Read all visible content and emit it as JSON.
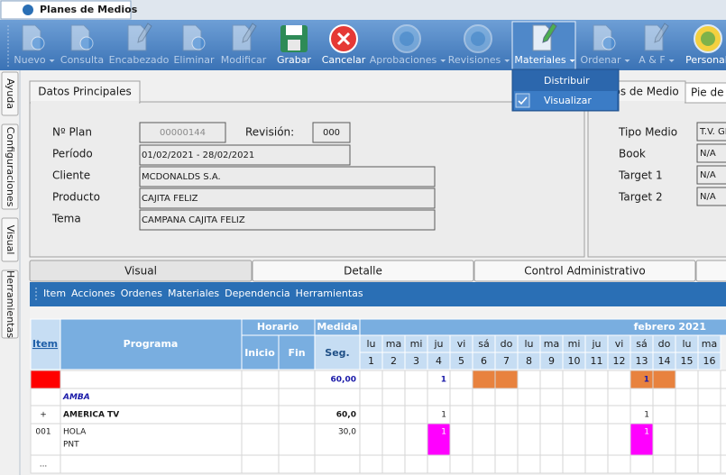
{
  "tab": "Planes de Medios",
  "toolbar": {
    "buttons": [
      {
        "label": "Nuevo",
        "enabled": false,
        "dropdown": true
      },
      {
        "label": "Consulta",
        "enabled": false,
        "dropdown": false
      },
      {
        "label": "Encabezado",
        "enabled": false,
        "dropdown": false
      },
      {
        "label": "Eliminar",
        "enabled": false,
        "dropdown": false
      },
      {
        "label": "Modificar",
        "enabled": false,
        "dropdown": false
      },
      {
        "label": "Grabar",
        "enabled": true,
        "dropdown": false
      },
      {
        "label": "Cancelar",
        "enabled": true,
        "dropdown": false
      },
      {
        "label": "Aprobaciones",
        "enabled": false,
        "dropdown": true
      },
      {
        "label": "Revisiones",
        "enabled": false,
        "dropdown": true
      },
      {
        "label": "Materiales",
        "enabled": true,
        "dropdown": true,
        "active": true
      },
      {
        "label": "Ordenar",
        "enabled": false,
        "dropdown": true
      },
      {
        "label": "A & F",
        "enabled": false,
        "dropdown": true
      },
      {
        "label": "Personali",
        "enabled": true,
        "dropdown": false
      }
    ]
  },
  "dropdown": {
    "items": [
      {
        "label": "Distribuir",
        "checked": false
      },
      {
        "label": "Visualizar",
        "checked": true
      }
    ]
  },
  "side_tabs": [
    "Ayuda",
    "Configuraciones",
    "Visual",
    "Herramientas"
  ],
  "main_tab": "Datos Principales",
  "plan": {
    "label": "Nº Plan",
    "value": "00000144"
  },
  "revision": {
    "label": "Revisión:",
    "value": "000"
  },
  "main_fields": [
    {
      "label": "Período",
      "value": "01/02/2021 - 28/02/2021"
    },
    {
      "label": "Cliente",
      "value": "MCDONALDS S.A."
    },
    {
      "label": "Producto",
      "value": "CAJITA FELIZ"
    },
    {
      "label": "Tema",
      "value": "CAMPANA CAJITA FELIZ"
    }
  ],
  "media_tabs": [
    "Datos de Medio",
    "Pie de"
  ],
  "media_fields": [
    {
      "label": "Tipo Medio",
      "value": "T.V. GI"
    },
    {
      "label": "Book",
      "value": "N/A"
    },
    {
      "label": "Target 1",
      "value": "N/A"
    },
    {
      "label": "Target 2",
      "value": "N/A"
    }
  ],
  "bottom_tabs": [
    "Visual",
    "Detalle",
    "Control Administrativo"
  ],
  "menu": [
    "Item",
    "Acciones",
    "Ordenes",
    "Materiales",
    "Dependencia",
    "Herramientas"
  ],
  "grid": {
    "headers": {
      "item": "Item",
      "programa": "Programa",
      "horario": "Horario",
      "inicio": "Inicio",
      "fin": "Fin",
      "medida": "Medida",
      "seg": "Seg.",
      "month": "febrero 2021"
    },
    "weekdays": [
      "lu",
      "ma",
      "mi",
      "ju",
      "vi",
      "sá",
      "do",
      "lu",
      "ma",
      "mi",
      "ju",
      "vi",
      "sá",
      "do",
      "lu",
      "ma"
    ],
    "days": [
      1,
      2,
      3,
      4,
      5,
      6,
      7,
      8,
      9,
      10,
      11,
      12,
      13,
      14,
      15,
      16
    ],
    "rows": [
      {
        "style": "total",
        "item_fill": "#ff0000",
        "seg": "60,00",
        "cells": [
          null,
          null,
          null,
          {
            "text": "1"
          },
          null,
          {
            "fill": "#e8823e"
          },
          {
            "fill": "#e8823e"
          },
          null,
          null,
          null,
          null,
          null,
          {
            "text": "1",
            "fill": "#e8823e"
          },
          {
            "fill": "#e8823e"
          },
          null,
          null
        ]
      },
      {
        "style": "group",
        "programa": "AMBA"
      },
      {
        "style": "subtotal",
        "item": "+",
        "programa": "AMERICA TV",
        "seg": "60,0",
        "cells": [
          null,
          null,
          null,
          {
            "text": "1"
          },
          null,
          null,
          null,
          null,
          null,
          null,
          null,
          null,
          {
            "text": "1"
          },
          null,
          null,
          null
        ]
      },
      {
        "style": "detail",
        "item": "001",
        "programa": "HOLA",
        "programa2": "PNT",
        "seg": "30,0",
        "cells": [
          null,
          null,
          null,
          {
            "text": "1",
            "fill": "#ff00ff"
          },
          null,
          null,
          null,
          null,
          null,
          null,
          null,
          null,
          {
            "text": "1",
            "fill": "#ff00ff"
          },
          null,
          null,
          null
        ]
      },
      {
        "style": "detail",
        "item": "..."
      }
    ]
  }
}
